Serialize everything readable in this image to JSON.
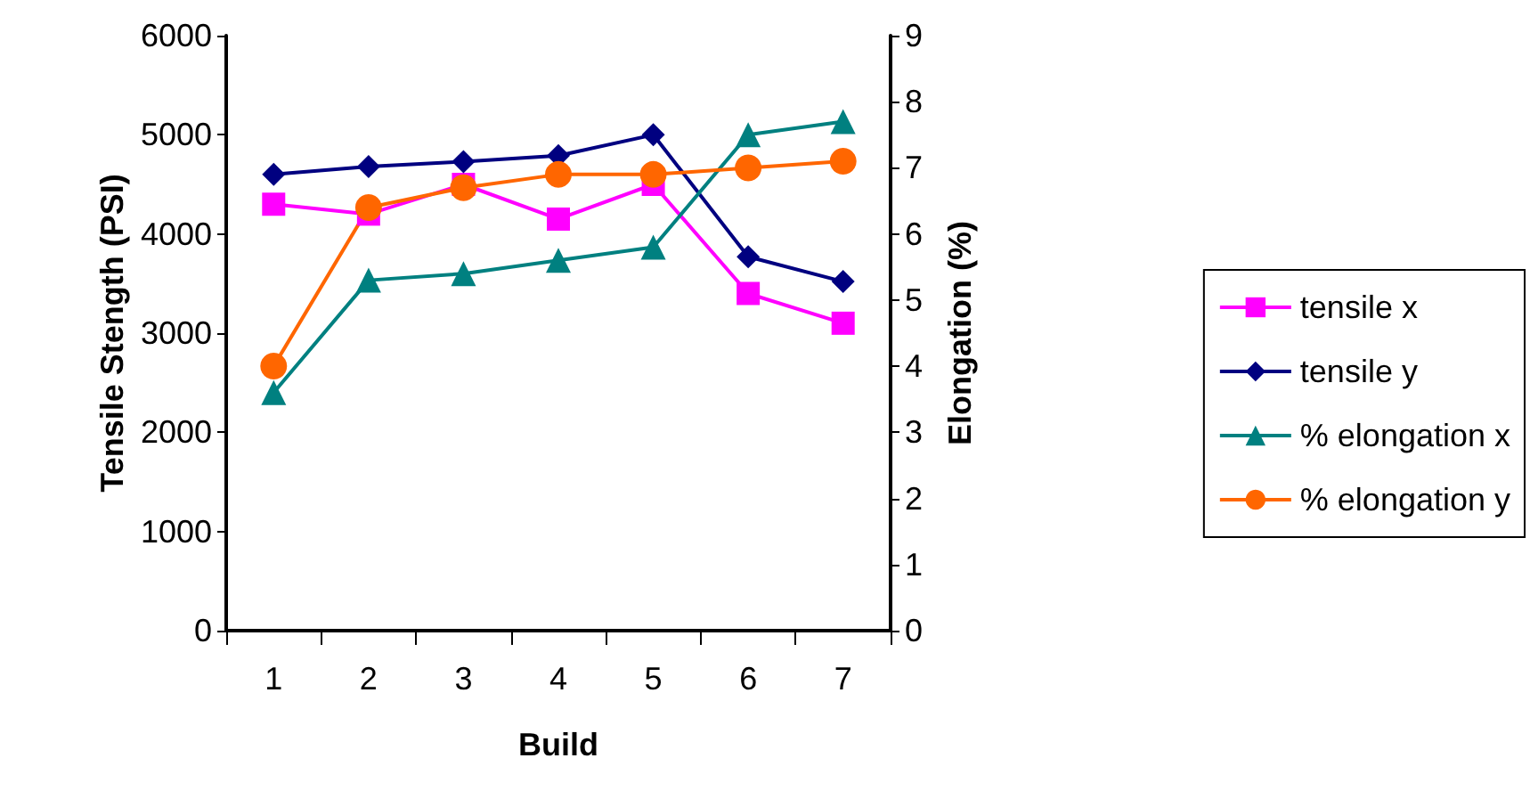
{
  "chart_data": {
    "type": "line",
    "xlabel": "Build",
    "ylabel": "Tensile Stength (PSI)",
    "y2label": "Elongation (%)",
    "categories": [
      "1",
      "2",
      "3",
      "4",
      "5",
      "6",
      "7"
    ],
    "series": [
      {
        "name": "tensile x",
        "color": "#ff00ff",
        "marker": "square",
        "values": [
          4300,
          4200,
          4500,
          4150,
          4500,
          3400,
          3100
        ]
      },
      {
        "name": "tensile y",
        "color": "#000080",
        "marker": "diamond",
        "values": [
          4600,
          4680,
          4730,
          4790,
          5000,
          3770,
          3520
        ]
      },
      {
        "name": "% elongation x",
        "color": "#008080",
        "marker": "triangle",
        "axis": "y2",
        "values": [
          3.6,
          5.3,
          5.4,
          5.6,
          5.8,
          7.5,
          7.7
        ]
      },
      {
        "name": "% elongation y",
        "color": "#ff6600",
        "marker": "circle",
        "axis": "y2",
        "values": [
          4.0,
          6.4,
          6.7,
          6.9,
          6.9,
          7.0,
          7.1
        ]
      }
    ],
    "ylim": [
      0,
      6000
    ],
    "yticks": [
      0,
      1000,
      2000,
      3000,
      4000,
      5000,
      6000
    ],
    "y2lim": [
      0,
      9
    ],
    "y2ticks": [
      0,
      1,
      2,
      3,
      4,
      5,
      6,
      7,
      8,
      9
    ],
    "grid": false,
    "legend": "right"
  }
}
